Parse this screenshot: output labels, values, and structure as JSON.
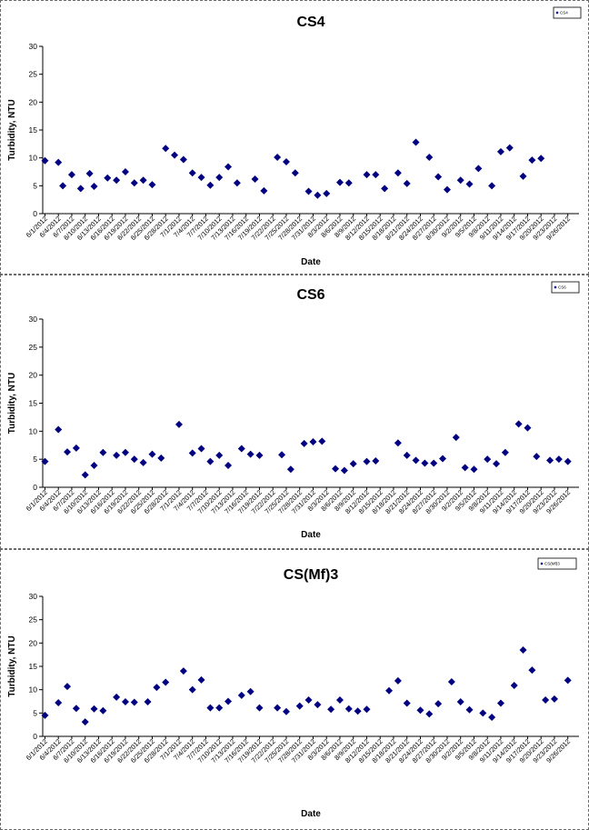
{
  "chart_data": [
    {
      "type": "scatter",
      "title": "CS4",
      "xlabel": "Date",
      "ylabel": "Turbidity, NTU",
      "ylim": [
        0,
        30
      ],
      "yticks": [
        "0",
        "5",
        "10",
        "15",
        "20",
        "25",
        "30"
      ],
      "grid": false,
      "legend_position": "top-right",
      "legend": "CS4",
      "marker_color": "#000080",
      "x_tick_labels": [
        "6/1/2012",
        "6/4/2012",
        "6/7/2012",
        "6/10/2012",
        "6/13/2012",
        "6/16/2012",
        "6/19/2012",
        "6/22/2012",
        "6/25/2012",
        "6/28/2012",
        "7/1/2012",
        "7/4/2012",
        "7/7/2012",
        "7/10/2012",
        "7/13/2012",
        "7/16/2012",
        "7/19/2012",
        "7/22/2012",
        "7/25/2012",
        "7/28/2012",
        "7/31/2012",
        "8/3/2012",
        "8/6/2012",
        "8/9/2012",
        "8/12/2012",
        "8/15/2012",
        "8/18/2012",
        "8/21/2012",
        "8/24/2012",
        "8/27/2012",
        "8/30/2012",
        "9/2/2012",
        "9/5/2012",
        "9/8/2012",
        "9/11/2012",
        "9/14/2012",
        "9/17/2012",
        "9/20/2012",
        "9/23/2012",
        "9/26/2012"
      ],
      "series": [
        {
          "name": "CS4",
          "points": [
            [
              "6/1/2012",
              9.5
            ],
            [
              "6/4/2012",
              9.2
            ],
            [
              "6/5/2012",
              5.0
            ],
            [
              "6/7/2012",
              7.0
            ],
            [
              "6/9/2012",
              4.5
            ],
            [
              "6/11/2012",
              7.2
            ],
            [
              "6/12/2012",
              4.9
            ],
            [
              "6/15/2012",
              6.4
            ],
            [
              "6/17/2012",
              6.0
            ],
            [
              "6/19/2012",
              7.5
            ],
            [
              "6/21/2012",
              5.5
            ],
            [
              "6/23/2012",
              6.0
            ],
            [
              "6/25/2012",
              5.2
            ],
            [
              "6/28/2012",
              11.7
            ],
            [
              "6/30/2012",
              10.5
            ],
            [
              "7/2/2012",
              9.7
            ],
            [
              "7/4/2012",
              7.3
            ],
            [
              "7/6/2012",
              6.5
            ],
            [
              "7/8/2012",
              5.1
            ],
            [
              "7/10/2012",
              6.5
            ],
            [
              "7/12/2012",
              8.4
            ],
            [
              "7/14/2012",
              5.5
            ],
            [
              "7/18/2012",
              6.2
            ],
            [
              "7/20/2012",
              4.1
            ],
            [
              "7/23/2012",
              10.1
            ],
            [
              "7/25/2012",
              9.3
            ],
            [
              "7/27/2012",
              7.3
            ],
            [
              "7/30/2012",
              4.0
            ],
            [
              "8/1/2012",
              3.3
            ],
            [
              "8/3/2012",
              3.6
            ],
            [
              "8/6/2012",
              5.6
            ],
            [
              "8/8/2012",
              5.5
            ],
            [
              "8/12/2012",
              7.0
            ],
            [
              "8/14/2012",
              7.0
            ],
            [
              "8/16/2012",
              4.5
            ],
            [
              "8/19/2012",
              7.3
            ],
            [
              "8/21/2012",
              5.4
            ],
            [
              "8/23/2012",
              12.8
            ],
            [
              "8/26/2012",
              10.1
            ],
            [
              "8/28/2012",
              6.6
            ],
            [
              "8/30/2012",
              4.3
            ],
            [
              "9/2/2012",
              6.0
            ],
            [
              "9/4/2012",
              5.3
            ],
            [
              "9/6/2012",
              8.1
            ],
            [
              "9/9/2012",
              5.0
            ],
            [
              "9/11/2012",
              11.1
            ],
            [
              "9/13/2012",
              11.8
            ],
            [
              "9/16/2012",
              6.7
            ],
            [
              "9/18/2012",
              9.6
            ],
            [
              "9/20/2012",
              9.9
            ]
          ]
        }
      ]
    },
    {
      "type": "scatter",
      "title": "CS6",
      "xlabel": "Date",
      "ylabel": "Turbidity, NTU",
      "ylim": [
        0,
        30
      ],
      "yticks": [
        "0",
        "5",
        "10",
        "15",
        "20",
        "25",
        "30"
      ],
      "grid": false,
      "legend_position": "top-right",
      "legend": "CS6",
      "marker_color": "#000080",
      "x_tick_labels": [
        "6/1/2012",
        "6/4/2012",
        "6/7/2012",
        "6/10/2012",
        "6/13/2012",
        "6/16/2012",
        "6/19/2012",
        "6/22/2012",
        "6/25/2012",
        "6/28/2012",
        "7/1/2012",
        "7/4/2012",
        "7/7/2012",
        "7/10/2012",
        "7/13/2012",
        "7/16/2012",
        "7/19/2012",
        "7/22/2012",
        "7/25/2012",
        "7/28/2012",
        "7/31/2012",
        "8/3/2012",
        "8/6/2012",
        "8/9/2012",
        "8/12/2012",
        "8/15/2012",
        "8/18/2012",
        "8/21/2012",
        "8/24/2012",
        "8/27/2012",
        "8/30/2012",
        "9/2/2012",
        "9/5/2012",
        "9/8/2012",
        "9/11/2012",
        "9/14/2012",
        "9/17/2012",
        "9/20/2012",
        "9/23/2012",
        "9/26/2012"
      ],
      "series": [
        {
          "name": "CS6",
          "points": [
            [
              "6/1/2012",
              4.6
            ],
            [
              "6/4/2012",
              10.3
            ],
            [
              "6/6/2012",
              6.3
            ],
            [
              "6/8/2012",
              7.0
            ],
            [
              "6/10/2012",
              2.2
            ],
            [
              "6/12/2012",
              3.9
            ],
            [
              "6/14/2012",
              6.2
            ],
            [
              "6/17/2012",
              5.7
            ],
            [
              "6/19/2012",
              6.2
            ],
            [
              "6/21/2012",
              5.0
            ],
            [
              "6/23/2012",
              4.4
            ],
            [
              "6/25/2012",
              5.9
            ],
            [
              "6/27/2012",
              5.2
            ],
            [
              "7/1/2012",
              11.2
            ],
            [
              "7/4/2012",
              6.1
            ],
            [
              "7/6/2012",
              6.9
            ],
            [
              "7/8/2012",
              4.6
            ],
            [
              "7/10/2012",
              5.7
            ],
            [
              "7/12/2012",
              3.9
            ],
            [
              "7/15/2012",
              6.9
            ],
            [
              "7/17/2012",
              5.9
            ],
            [
              "7/19/2012",
              5.7
            ],
            [
              "7/24/2012",
              5.8
            ],
            [
              "7/26/2012",
              3.2
            ],
            [
              "7/29/2012",
              7.8
            ],
            [
              "7/31/2012",
              8.1
            ],
            [
              "8/2/2012",
              8.2
            ],
            [
              "8/5/2012",
              3.3
            ],
            [
              "8/7/2012",
              3.0
            ],
            [
              "8/9/2012",
              4.2
            ],
            [
              "8/12/2012",
              4.6
            ],
            [
              "8/14/2012",
              4.7
            ],
            [
              "8/19/2012",
              7.9
            ],
            [
              "8/21/2012",
              5.7
            ],
            [
              "8/23/2012",
              4.8
            ],
            [
              "8/25/2012",
              4.3
            ],
            [
              "8/27/2012",
              4.3
            ],
            [
              "8/29/2012",
              5.1
            ],
            [
              "9/1/2012",
              8.9
            ],
            [
              "9/3/2012",
              3.5
            ],
            [
              "9/5/2012",
              3.2
            ],
            [
              "9/8/2012",
              5.0
            ],
            [
              "9/10/2012",
              4.2
            ],
            [
              "9/12/2012",
              6.2
            ],
            [
              "9/15/2012",
              11.3
            ],
            [
              "9/17/2012",
              10.6
            ],
            [
              "9/19/2012",
              5.5
            ],
            [
              "9/22/2012",
              4.8
            ],
            [
              "9/24/2012",
              5.0
            ],
            [
              "9/26/2012",
              4.6
            ]
          ]
        }
      ]
    },
    {
      "type": "scatter",
      "title": "CS(Mf)3",
      "xlabel": "Date",
      "ylabel": "Turbidity, NTU",
      "ylim": [
        0,
        30
      ],
      "yticks": [
        "0",
        "5",
        "10",
        "15",
        "20",
        "25",
        "30"
      ],
      "grid": false,
      "legend_position": "top-right",
      "legend": "CS(Mf)3",
      "marker_color": "#000080",
      "x_tick_labels": [
        "6/1/2012",
        "6/4/2012",
        "6/7/2012",
        "6/10/2012",
        "6/13/2012",
        "6/16/2012",
        "6/19/2012",
        "6/22/2012",
        "6/25/2012",
        "6/28/2012",
        "7/1/2012",
        "7/4/2012",
        "7/7/2012",
        "7/10/2012",
        "7/13/2012",
        "7/16/2012",
        "7/19/2012",
        "7/22/2012",
        "7/25/2012",
        "7/28/2012",
        "7/31/2012",
        "8/3/2012",
        "8/6/2012",
        "8/9/2012",
        "8/12/2012",
        "8/15/2012",
        "8/18/2012",
        "8/21/2012",
        "8/24/2012",
        "8/27/2012",
        "8/30/2012",
        "9/2/2012",
        "9/5/2012",
        "9/8/2012",
        "9/11/2012",
        "9/14/2012",
        "9/17/2012",
        "9/20/2012",
        "9/23/2012",
        "9/26/2012"
      ],
      "series": [
        {
          "name": "CS(Mf)3",
          "points": [
            [
              "6/1/2012",
              4.5
            ],
            [
              "6/4/2012",
              7.2
            ],
            [
              "6/6/2012",
              10.7
            ],
            [
              "6/8/2012",
              6.0
            ],
            [
              "6/10/2012",
              3.1
            ],
            [
              "6/12/2012",
              5.9
            ],
            [
              "6/14/2012",
              5.5
            ],
            [
              "6/17/2012",
              8.4
            ],
            [
              "6/19/2012",
              7.4
            ],
            [
              "6/21/2012",
              7.3
            ],
            [
              "6/24/2012",
              7.4
            ],
            [
              "6/26/2012",
              10.5
            ],
            [
              "6/28/2012",
              11.6
            ],
            [
              "7/2/2012",
              14.0
            ],
            [
              "7/4/2012",
              10.0
            ],
            [
              "7/6/2012",
              12.1
            ],
            [
              "7/8/2012",
              6.1
            ],
            [
              "7/10/2012",
              6.1
            ],
            [
              "7/12/2012",
              7.5
            ],
            [
              "7/15/2012",
              8.8
            ],
            [
              "7/17/2012",
              9.6
            ],
            [
              "7/19/2012",
              6.1
            ],
            [
              "7/23/2012",
              6.1
            ],
            [
              "7/25/2012",
              5.3
            ],
            [
              "7/28/2012",
              6.5
            ],
            [
              "7/30/2012",
              7.8
            ],
            [
              "8/1/2012",
              6.8
            ],
            [
              "8/4/2012",
              5.8
            ],
            [
              "8/6/2012",
              7.8
            ],
            [
              "8/8/2012",
              5.9
            ],
            [
              "8/10/2012",
              5.4
            ],
            [
              "8/12/2012",
              5.8
            ],
            [
              "8/17/2012",
              9.8
            ],
            [
              "8/19/2012",
              11.9
            ],
            [
              "8/21/2012",
              7.1
            ],
            [
              "8/24/2012",
              5.6
            ],
            [
              "8/26/2012",
              4.8
            ],
            [
              "8/28/2012",
              7.0
            ],
            [
              "8/31/2012",
              11.7
            ],
            [
              "9/2/2012",
              7.4
            ],
            [
              "9/4/2012",
              5.7
            ],
            [
              "9/7/2012",
              5.0
            ],
            [
              "9/9/2012",
              4.1
            ],
            [
              "9/11/2012",
              7.1
            ],
            [
              "9/14/2012",
              10.9
            ],
            [
              "9/16/2012",
              18.5
            ],
            [
              "9/18/2012",
              14.2
            ],
            [
              "9/21/2012",
              7.8
            ],
            [
              "9/23/2012",
              8.0
            ],
            [
              "9/26/2012",
              12.0
            ]
          ]
        }
      ]
    }
  ]
}
